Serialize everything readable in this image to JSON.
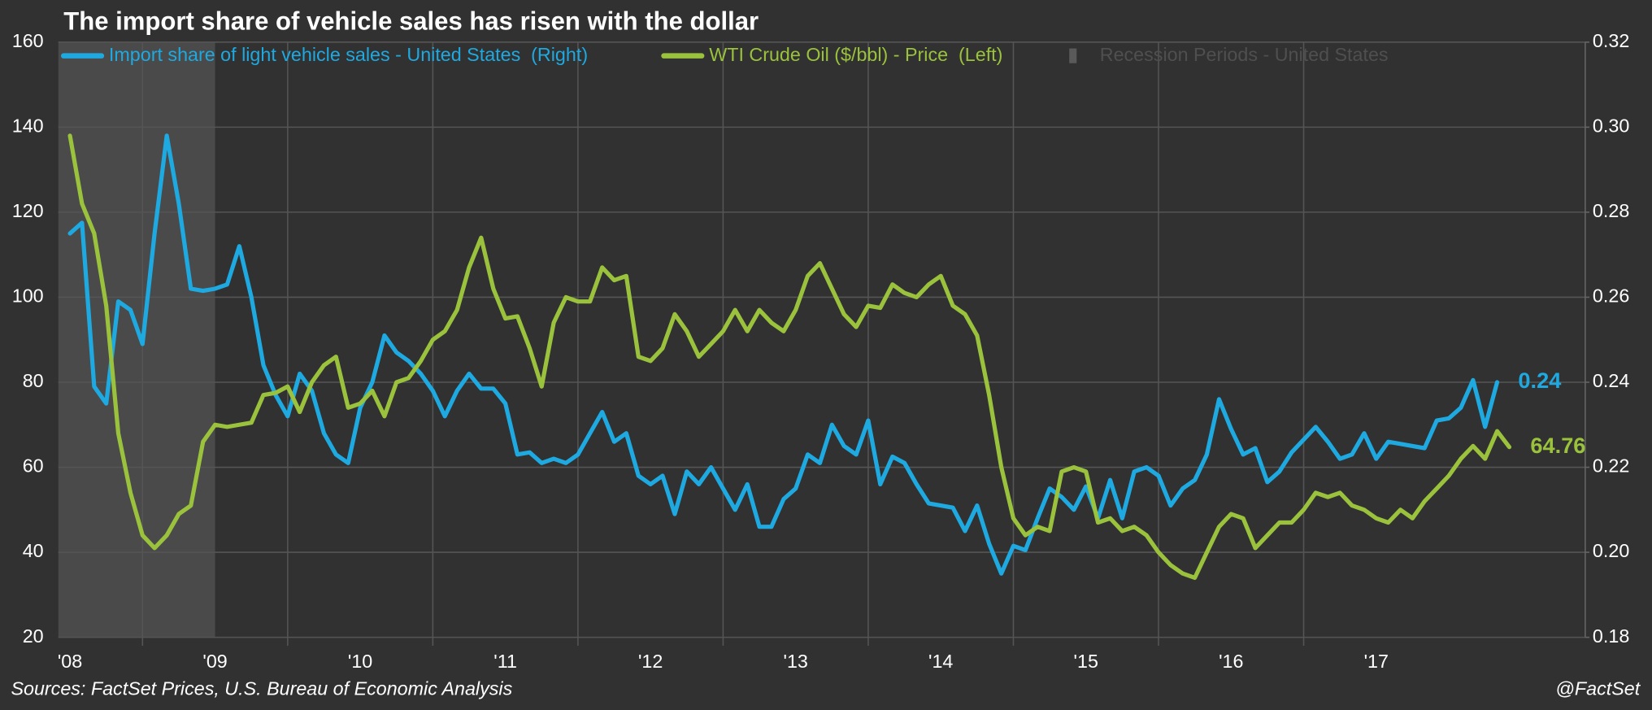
{
  "chart_data": {
    "type": "line",
    "title": "The import share of vehicle sales has risen with the dollar",
    "source": "Sources: FactSet Prices, U.S. Bureau of Economic Analysis",
    "credit": "@FactSet",
    "recession_label": "Recession Periods - United States",
    "recession": [
      2007.917,
      2009.5
    ],
    "recession_color": "#4a4a4a",
    "grid": true,
    "legend": "top",
    "xlim": [
      2008.42,
      2018.94
    ],
    "xticks": [
      {
        "value": 2008.5,
        "label": "'08"
      },
      {
        "value": 2009.5,
        "label": "'09"
      },
      {
        "value": 2010.5,
        "label": "'10"
      },
      {
        "value": 2011.5,
        "label": "'11"
      },
      {
        "value": 2012.5,
        "label": "'12"
      },
      {
        "value": 2013.5,
        "label": "'13"
      },
      {
        "value": 2014.5,
        "label": "'14"
      },
      {
        "value": 2015.5,
        "label": "'15"
      },
      {
        "value": 2016.5,
        "label": "'16"
      },
      {
        "value": 2017.5,
        "label": "'17"
      }
    ],
    "ylim": [
      20,
      160
    ],
    "yticks": [
      20,
      40,
      60,
      80,
      100,
      120,
      140,
      160
    ],
    "y2lim": [
      0.18,
      0.32
    ],
    "y2ticks": [
      0.18,
      {
        "value": 0.2,
        "label": "0.20"
      },
      0.22,
      0.24,
      0.26,
      0.28,
      {
        "value": 0.3,
        "label": "0.30"
      },
      0.32
    ],
    "x": [
      2008.5,
      2008.583,
      2008.667,
      2008.75,
      2008.833,
      2008.917,
      2009,
      2009.083,
      2009.167,
      2009.25,
      2009.333,
      2009.417,
      2009.5,
      2009.583,
      2009.667,
      2009.75,
      2009.833,
      2009.917,
      2010,
      2010.083,
      2010.167,
      2010.25,
      2010.333,
      2010.417,
      2010.5,
      2010.583,
      2010.667,
      2010.75,
      2010.833,
      2010.917,
      2011,
      2011.083,
      2011.167,
      2011.25,
      2011.333,
      2011.417,
      2011.5,
      2011.583,
      2011.667,
      2011.75,
      2011.833,
      2011.917,
      2012,
      2012.083,
      2012.167,
      2012.25,
      2012.333,
      2012.417,
      2012.5,
      2012.583,
      2012.667,
      2012.75,
      2012.833,
      2012.917,
      2013,
      2013.083,
      2013.167,
      2013.25,
      2013.333,
      2013.417,
      2013.5,
      2013.583,
      2013.667,
      2013.75,
      2013.833,
      2013.917,
      2014,
      2014.083,
      2014.167,
      2014.25,
      2014.333,
      2014.417,
      2014.5,
      2014.583,
      2014.667,
      2014.75,
      2014.833,
      2014.917,
      2015,
      2015.083,
      2015.167,
      2015.25,
      2015.333,
      2015.417,
      2015.5,
      2015.583,
      2015.667,
      2015.75,
      2015.833,
      2015.917,
      2016,
      2016.083,
      2016.167,
      2016.25,
      2016.333,
      2016.417,
      2016.5,
      2016.583,
      2016.667,
      2016.75,
      2016.833,
      2016.917,
      2017,
      2017.083,
      2017.167,
      2017.25,
      2017.333,
      2017.417,
      2017.5,
      2017.583,
      2017.667,
      2017.75,
      2017.833,
      2017.917,
      2018,
      2018.083,
      2018.167,
      2018.25,
      2018.333,
      2018.417
    ],
    "series": [
      {
        "name": "Import share of light vehicle sales - United States  (Right)",
        "color": "#1ea9e1",
        "axis": "y2",
        "end_label": "0.24",
        "values": [
          0.275,
          0.2775,
          0.239,
          0.235,
          0.259,
          0.257,
          0.249,
          0.275,
          0.298,
          0.282,
          0.262,
          0.2615,
          0.262,
          0.263,
          0.272,
          0.26,
          0.244,
          0.237,
          0.232,
          0.242,
          0.238,
          0.228,
          0.223,
          0.221,
          0.234,
          0.24,
          0.251,
          0.247,
          0.245,
          0.242,
          0.238,
          0.232,
          0.238,
          0.242,
          0.2385,
          0.2385,
          0.235,
          0.223,
          0.2235,
          0.221,
          0.222,
          0.221,
          0.223,
          0.228,
          0.233,
          0.226,
          0.228,
          0.218,
          0.216,
          0.218,
          0.209,
          0.219,
          0.216,
          0.22,
          0.215,
          0.21,
          0.216,
          0.206,
          0.206,
          0.2125,
          0.215,
          0.223,
          0.221,
          0.23,
          0.225,
          0.223,
          0.231,
          0.216,
          0.2225,
          0.221,
          0.216,
          0.2115,
          0.211,
          0.2105,
          0.205,
          0.211,
          0.202,
          0.195,
          0.2015,
          0.2005,
          0.208,
          0.215,
          0.213,
          0.21,
          0.2155,
          0.208,
          0.217,
          0.208,
          0.219,
          0.22,
          0.218,
          0.211,
          0.215,
          0.217,
          0.223,
          0.236,
          0.229,
          0.223,
          0.2245,
          0.2165,
          0.219,
          0.2235,
          0.2265,
          0.2295,
          0.226,
          0.222,
          0.223,
          0.228,
          0.222,
          0.226,
          0.2255,
          0.225,
          0.2245,
          0.231,
          0.2315,
          0.234,
          0.2405,
          0.2295,
          0.24,
          null
        ]
      },
      {
        "name": "WTI Crude Oil ($/bbl) - Price  (Left)",
        "color": "#9ac23c",
        "axis": "y",
        "end_label": "64.76",
        "values": [
          138,
          122,
          115,
          98,
          68,
          54,
          44,
          41,
          44,
          49,
          51,
          66,
          70,
          69.5,
          70,
          70.5,
          77,
          77.5,
          79,
          73,
          80,
          84,
          86,
          74,
          75,
          78,
          72,
          80,
          81,
          85,
          90,
          92,
          97,
          107,
          114,
          102,
          95,
          95.5,
          88,
          79,
          94,
          100,
          99,
          99,
          107,
          104,
          105,
          86,
          85,
          88,
          96,
          92,
          86,
          89,
          92,
          97,
          92,
          97,
          94,
          92,
          97,
          105,
          108,
          102,
          96,
          93,
          98,
          97.5,
          103,
          101,
          100,
          103,
          105,
          98,
          96,
          91,
          77,
          60,
          48,
          44,
          46,
          45,
          59,
          60,
          59,
          47,
          48,
          45,
          46,
          44,
          40,
          37,
          35,
          34,
          40,
          46,
          49,
          48,
          41,
          44,
          47,
          47,
          50,
          54,
          53,
          54,
          51,
          50,
          48,
          47,
          50,
          48,
          52,
          55,
          58,
          62,
          65,
          62,
          68.5,
          64.76
        ]
      }
    ]
  }
}
